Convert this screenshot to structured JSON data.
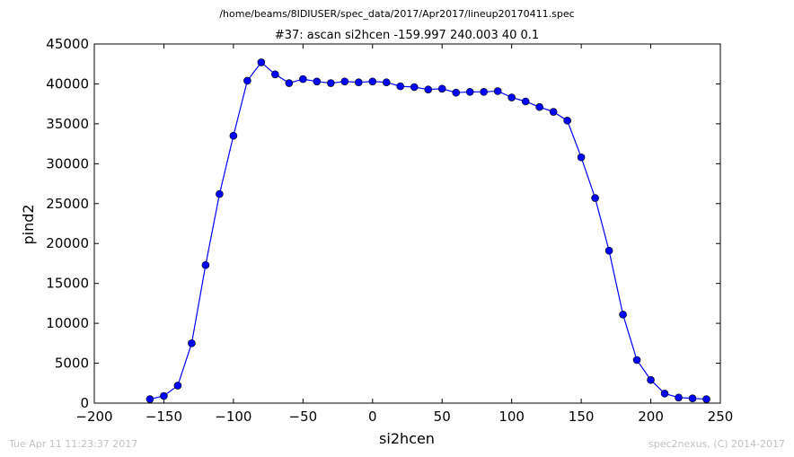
{
  "figure": {
    "file_path": "/home/beams/8IDIUSER/spec_data/2017/Apr2017/lineup20170411.spec",
    "timestamp": "Tue Apr 11 11:23:37 2017",
    "credit": "spec2nexus, (C) 2014-2017"
  },
  "chart_data": {
    "type": "line",
    "title": "#37: ascan  si2hcen -159.997 240.003  40 0.1",
    "xlabel": "si2hcen",
    "ylabel": "pind2",
    "xlim": [
      -200,
      250
    ],
    "ylim": [
      0,
      45000
    ],
    "xticks": [
      -200,
      -150,
      -100,
      -50,
      0,
      50,
      100,
      150,
      200,
      250
    ],
    "yticks": [
      0,
      5000,
      10000,
      15000,
      20000,
      25000,
      30000,
      35000,
      40000,
      45000
    ],
    "grid": false,
    "series": [
      {
        "color": "#0000ff",
        "marker": "circle",
        "x": [
          -160,
          -150,
          -140,
          -130,
          -120,
          -110,
          -100,
          -90,
          -80,
          -70,
          -60,
          -50,
          -40,
          -30,
          -20,
          -10,
          0,
          10,
          20,
          30,
          40,
          50,
          60,
          70,
          80,
          90,
          100,
          110,
          120,
          130,
          140,
          150,
          160,
          170,
          180,
          190,
          200,
          210,
          220,
          230,
          240
        ],
        "y": [
          500,
          900,
          2200,
          7500,
          17300,
          26200,
          33500,
          40400,
          42700,
          41200,
          40100,
          40600,
          40300,
          40100,
          40300,
          40200,
          40300,
          40200,
          39700,
          39600,
          39300,
          39400,
          38900,
          39000,
          39000,
          39100,
          38300,
          37800,
          37100,
          36500,
          35400,
          30800,
          25700,
          19100,
          11100,
          5400,
          2900,
          1200,
          700,
          600,
          500
        ]
      }
    ]
  }
}
